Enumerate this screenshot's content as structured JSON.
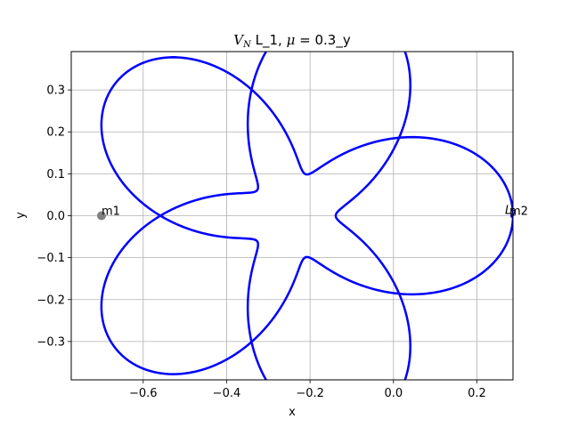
{
  "chart_data": {
    "type": "line",
    "title": {
      "symbol": "V",
      "symbol_sub": "N",
      "middle": " L_1, ",
      "param_symbol": "μ",
      "tail": " = 0.3_y"
    },
    "xlabel": "x",
    "ylabel": "y",
    "xlim": [
      -0.7725,
      0.2865
    ],
    "ylim": [
      -0.3915,
      0.3915
    ],
    "xticks": [
      -0.6,
      -0.4,
      -0.2,
      0.0,
      0.2
    ],
    "xtick_labels": [
      "−0.6",
      "−0.4",
      "−0.2",
      "0.0",
      "0.2"
    ],
    "yticks": [
      -0.3,
      -0.2,
      -0.1,
      0.0,
      0.1,
      0.2,
      0.3
    ],
    "ytick_labels": [
      "−0.3",
      "−0.2",
      "−0.1",
      "0.0",
      "0.1",
      "0.2",
      "0.3"
    ],
    "grid": true,
    "series": [
      {
        "color": "#0000ff",
        "description_free": true,
        "trajectory": {
          "center": [
            -0.2425,
            0.0
          ],
          "petals": 5,
          "r_min": 0.104,
          "r_max": 0.529,
          "start_angle_deg": 0,
          "turns_deg": 1670
        }
      }
    ],
    "points": [
      {
        "label": "m1",
        "x": -0.7,
        "y": 0.0,
        "color": "#808080"
      },
      {
        "label": "m2",
        "x": 0.3,
        "y": 0.0,
        "color": "#808080"
      },
      {
        "label": "L_1",
        "x": 0.2865,
        "y": 0.0,
        "color": "#0000ff"
      }
    ],
    "colors": {
      "line": "#0000ff",
      "grid": "#b0b0b0",
      "marker": "#808080"
    }
  }
}
